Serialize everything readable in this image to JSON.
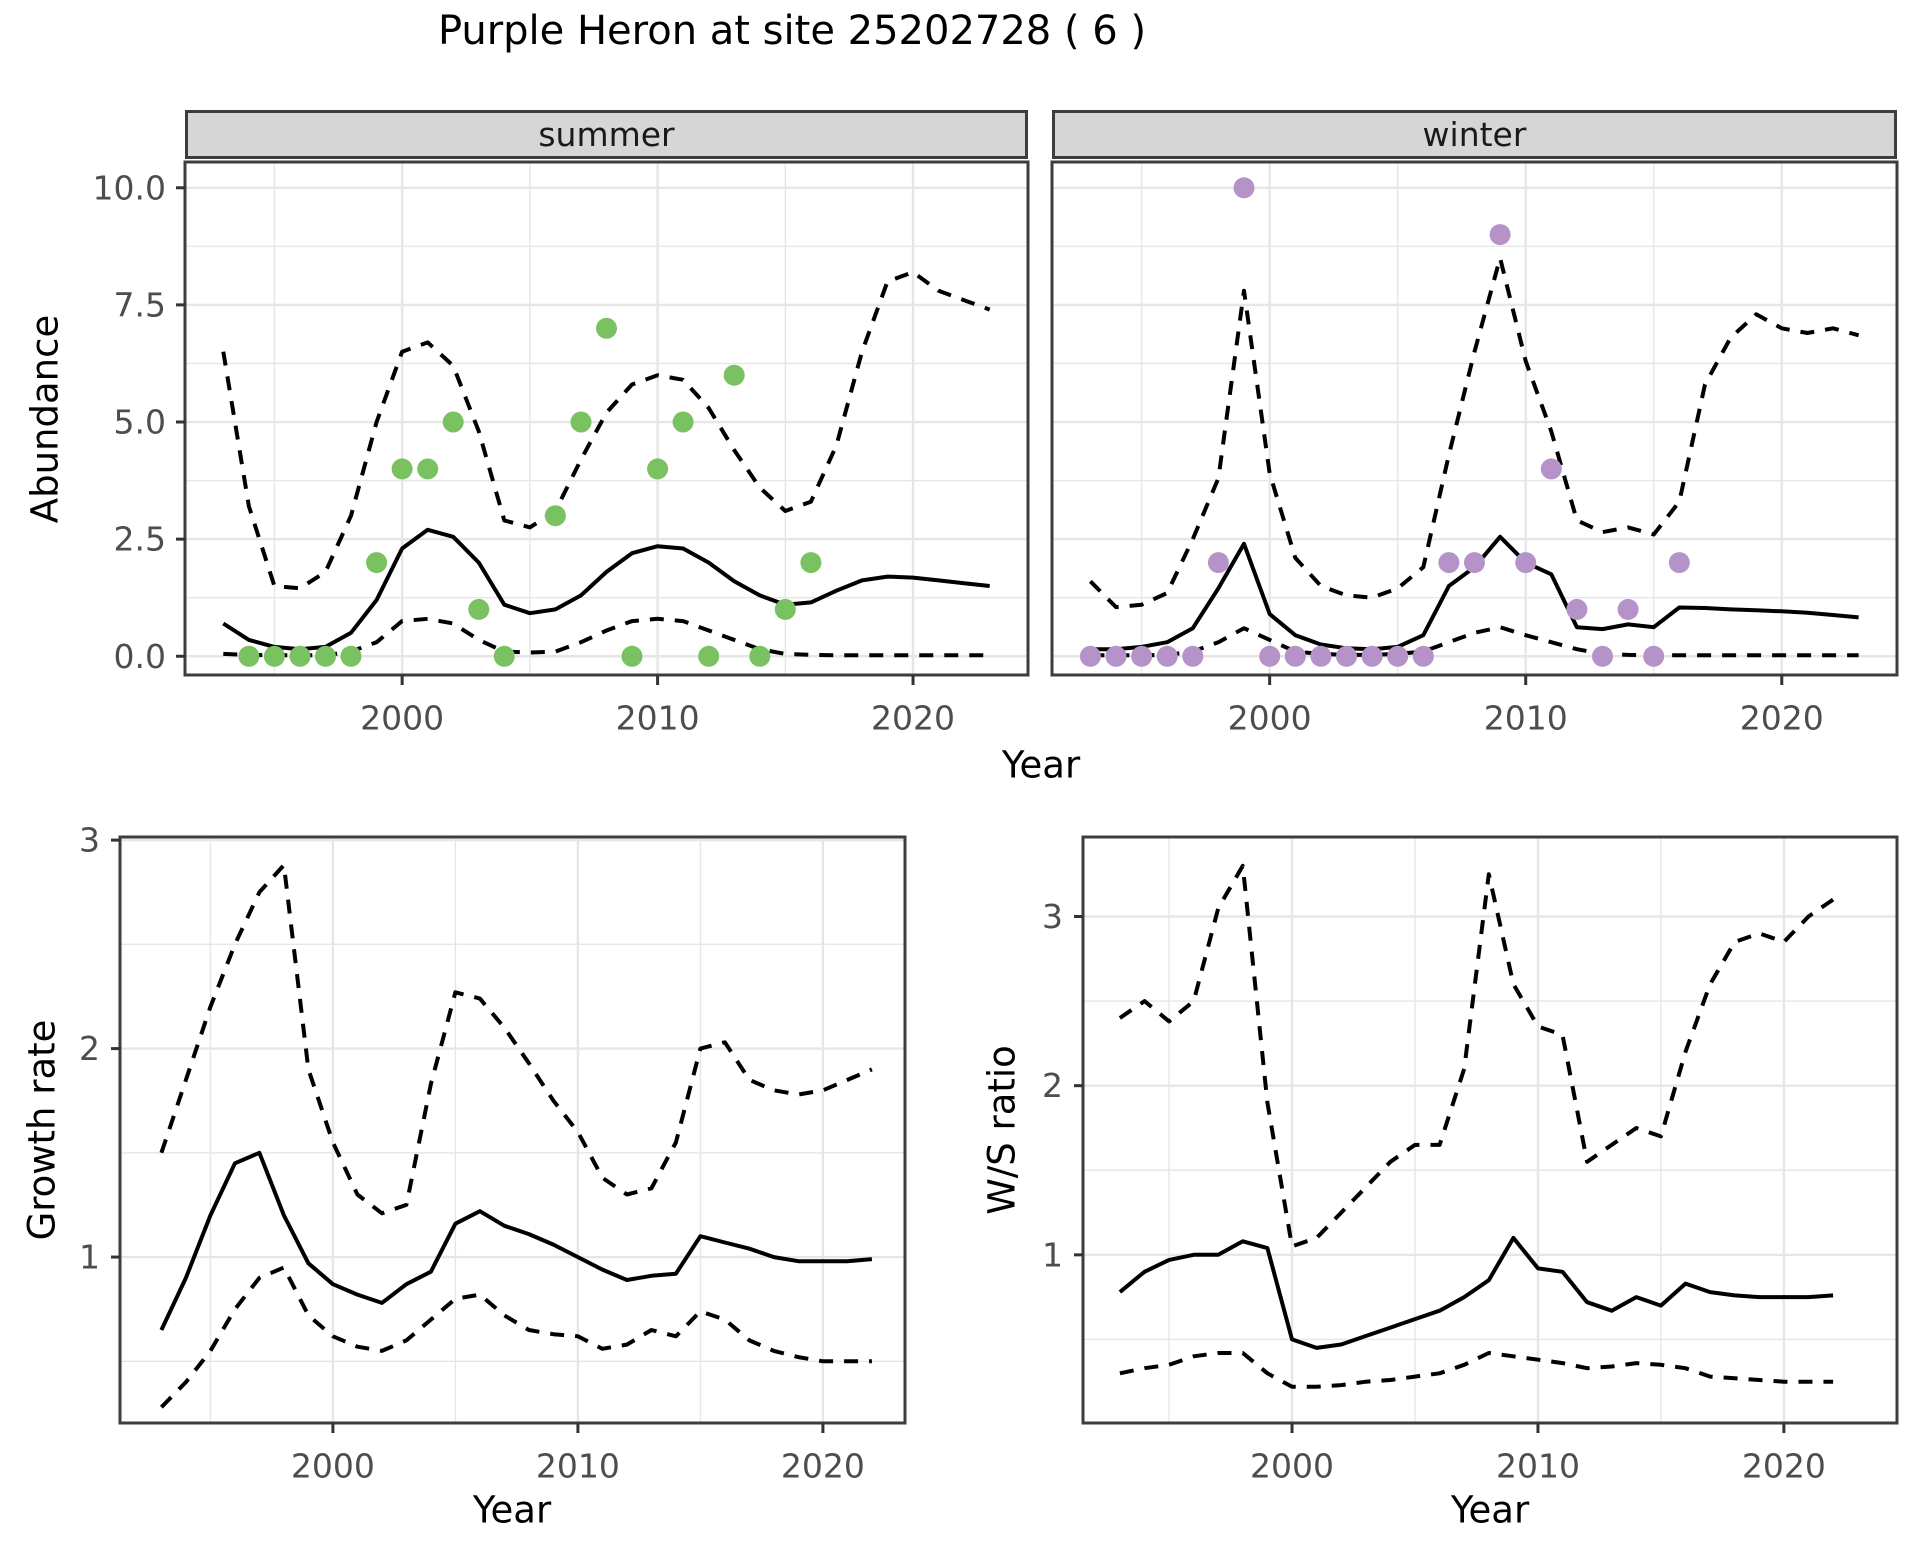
{
  "title": "Purple Heron at site 25202728 ( 6 )",
  "colors": {
    "summer_points": "#7ac162",
    "winter_points": "#b593c8",
    "line": "#000000",
    "panel_border": "#3d3d3d",
    "gridline": "#e6e6e6",
    "strip_background": "#d6d6d6",
    "tick_label": "#4d4d4d"
  },
  "chart_data": [
    {
      "id": "abundance",
      "type": "scatter+line",
      "xlabel": "Year",
      "ylabel": "Abundance",
      "facets": [
        "summer",
        "winter"
      ],
      "legend": "none",
      "grid": "on",
      "xlim": [
        1991.5,
        2024.5
      ],
      "ylim": [
        -0.4,
        10.55
      ],
      "xticks": {
        "values": [
          2000,
          2010,
          2020
        ],
        "labels": [
          "2000",
          "2010",
          "2020"
        ]
      },
      "yticks": {
        "values": [
          0,
          2.5,
          5,
          7.5,
          10
        ],
        "labels": [
          "0.0",
          "2.5",
          "5.0",
          "7.5",
          "10.0"
        ]
      },
      "line_year_start": 1993,
      "panels": [
        {
          "facet": "summer",
          "point_color": "#7ac162",
          "points": {
            "years": [
              1994,
              1995,
              1996,
              1997,
              1998,
              1999,
              2000,
              2001,
              2002,
              2003,
              2004,
              2006,
              2007,
              2008,
              2009,
              2010,
              2011,
              2012,
              2013,
              2014,
              2015,
              2016
            ],
            "values": [
              0,
              0,
              0,
              0,
              0,
              2,
              4,
              4,
              5,
              1,
              0,
              3,
              5,
              7,
              0,
              4,
              5,
              0,
              6,
              0,
              1,
              2
            ]
          },
          "fit": [
            0.7,
            0.35,
            0.2,
            0.15,
            0.2,
            0.5,
            1.2,
            2.3,
            2.7,
            2.55,
            2.0,
            1.1,
            0.92,
            1.0,
            1.3,
            1.8,
            2.2,
            2.35,
            2.3,
            2.0,
            1.6,
            1.3,
            1.1,
            1.15,
            1.4,
            1.62,
            1.7,
            1.68,
            1.62,
            1.56,
            1.5
          ],
          "upper95": [
            6.5,
            3.2,
            1.5,
            1.45,
            1.8,
            3.0,
            5.0,
            6.5,
            6.7,
            6.2,
            4.8,
            2.9,
            2.75,
            3.1,
            4.2,
            5.2,
            5.8,
            6.0,
            5.9,
            5.3,
            4.4,
            3.6,
            3.1,
            3.3,
            4.5,
            6.5,
            8.0,
            8.2,
            7.8,
            7.6,
            7.4
          ],
          "lower95": [
            0.05,
            0.03,
            0.02,
            0.02,
            0.02,
            0.1,
            0.3,
            0.75,
            0.8,
            0.7,
            0.35,
            0.1,
            0.08,
            0.1,
            0.3,
            0.55,
            0.75,
            0.8,
            0.75,
            0.55,
            0.35,
            0.15,
            0.05,
            0.03,
            0.02,
            0.02,
            0.02,
            0.02,
            0.02,
            0.02,
            0.02
          ]
        },
        {
          "facet": "winter",
          "point_color": "#b593c8",
          "points": {
            "years": [
              1993,
              1994,
              1995,
              1996,
              1997,
              1998,
              1999,
              2000,
              2001,
              2002,
              2003,
              2004,
              2005,
              2006,
              2007,
              2008,
              2009,
              2010,
              2011,
              2012,
              2013,
              2014,
              2015,
              2016
            ],
            "values": [
              0,
              0,
              0,
              0,
              0,
              2,
              10,
              0,
              0,
              0,
              0,
              0,
              0,
              0,
              2,
              2,
              9,
              2,
              4,
              1,
              0,
              1,
              0,
              2
            ]
          },
          "fit": [
            0.15,
            0.15,
            0.2,
            0.3,
            0.6,
            1.45,
            2.4,
            0.9,
            0.45,
            0.25,
            0.17,
            0.15,
            0.2,
            0.45,
            1.5,
            1.9,
            2.55,
            2.0,
            1.75,
            0.62,
            0.58,
            0.68,
            0.62,
            1.04,
            1.03,
            1.0,
            0.98,
            0.96,
            0.93,
            0.88,
            0.83
          ],
          "upper95": [
            1.6,
            1.05,
            1.1,
            1.35,
            2.5,
            3.8,
            7.8,
            3.9,
            2.1,
            1.5,
            1.3,
            1.25,
            1.45,
            1.9,
            4.3,
            6.5,
            8.5,
            6.3,
            4.8,
            2.9,
            2.65,
            2.75,
            2.6,
            3.3,
            5.8,
            6.8,
            7.3,
            7.0,
            6.9,
            7.0,
            6.85
          ],
          "lower95": [
            0.02,
            0.02,
            0.02,
            0.03,
            0.1,
            0.3,
            0.6,
            0.35,
            0.1,
            0.05,
            0.03,
            0.03,
            0.05,
            0.1,
            0.3,
            0.5,
            0.62,
            0.45,
            0.3,
            0.15,
            0.05,
            0.03,
            0.02,
            0.02,
            0.02,
            0.02,
            0.02,
            0.02,
            0.02,
            0.02,
            0.02
          ]
        }
      ]
    },
    {
      "id": "growth_rate",
      "type": "line",
      "xlabel": "Year",
      "ylabel": "Growth rate",
      "grid": "on",
      "xlim": [
        1991.31,
        2023.35
      ],
      "ylim": [
        0.204,
        3.015
      ],
      "xticks": {
        "values": [
          2000,
          2010,
          2020
        ],
        "labels": [
          "2000",
          "2010",
          "2020"
        ]
      },
      "yticks": {
        "values": [
          1,
          2,
          3
        ],
        "labels": [
          "1",
          "2",
          "3"
        ]
      },
      "line_year_start": 1993,
      "fit": [
        0.65,
        0.9,
        1.2,
        1.45,
        1.5,
        1.2,
        0.97,
        0.87,
        0.82,
        0.78,
        0.87,
        0.93,
        1.16,
        1.22,
        1.15,
        1.11,
        1.06,
        1.0,
        0.94,
        0.89,
        0.91,
        0.92,
        1.1,
        1.07,
        1.04,
        1.0,
        0.98,
        0.98,
        0.98,
        0.99
      ],
      "upper95": [
        1.5,
        1.85,
        2.2,
        2.5,
        2.75,
        2.88,
        1.9,
        1.55,
        1.3,
        1.21,
        1.25,
        1.83,
        2.27,
        2.24,
        2.1,
        1.93,
        1.75,
        1.6,
        1.38,
        1.3,
        1.33,
        1.55,
        2.0,
        2.03,
        1.85,
        1.8,
        1.78,
        1.8,
        1.85,
        1.9
      ],
      "lower95": [
        0.28,
        0.4,
        0.55,
        0.75,
        0.9,
        0.95,
        0.72,
        0.62,
        0.57,
        0.55,
        0.6,
        0.7,
        0.8,
        0.82,
        0.72,
        0.65,
        0.63,
        0.62,
        0.56,
        0.58,
        0.65,
        0.62,
        0.74,
        0.7,
        0.6,
        0.55,
        0.52,
        0.5,
        0.5,
        0.5
      ]
    },
    {
      "id": "ws_ratio",
      "type": "line",
      "xlabel": "Year",
      "ylabel": "W/S ratio",
      "grid": "on",
      "xlim": [
        1991.5,
        2024.6
      ],
      "ylim": [
        0.006,
        3.47
      ],
      "xticks": {
        "values": [
          2000,
          2010,
          2020
        ],
        "labels": [
          "2000",
          "2010",
          "2020"
        ]
      },
      "yticks": {
        "values": [
          1,
          2,
          3
        ],
        "labels": [
          "1",
          "2",
          "3"
        ]
      },
      "line_year_start": 1993,
      "fit": [
        0.78,
        0.9,
        0.97,
        1.0,
        1.0,
        1.08,
        1.04,
        0.5,
        0.45,
        0.47,
        0.52,
        0.57,
        0.62,
        0.67,
        0.75,
        0.85,
        1.1,
        0.92,
        0.9,
        0.72,
        0.67,
        0.75,
        0.7,
        0.83,
        0.78,
        0.76,
        0.75,
        0.75,
        0.75,
        0.76
      ],
      "upper95": [
        2.4,
        2.5,
        2.38,
        2.5,
        3.05,
        3.3,
        1.9,
        1.05,
        1.1,
        1.25,
        1.4,
        1.55,
        1.65,
        1.65,
        2.1,
        3.25,
        2.6,
        2.35,
        2.3,
        1.55,
        1.65,
        1.75,
        1.7,
        2.2,
        2.6,
        2.85,
        2.9,
        2.85,
        3.0,
        3.1
      ],
      "lower95": [
        0.3,
        0.33,
        0.35,
        0.4,
        0.42,
        0.42,
        0.3,
        0.22,
        0.22,
        0.23,
        0.25,
        0.26,
        0.28,
        0.3,
        0.35,
        0.42,
        0.4,
        0.38,
        0.36,
        0.33,
        0.34,
        0.36,
        0.35,
        0.33,
        0.28,
        0.27,
        0.26,
        0.25,
        0.25,
        0.25
      ]
    }
  ]
}
